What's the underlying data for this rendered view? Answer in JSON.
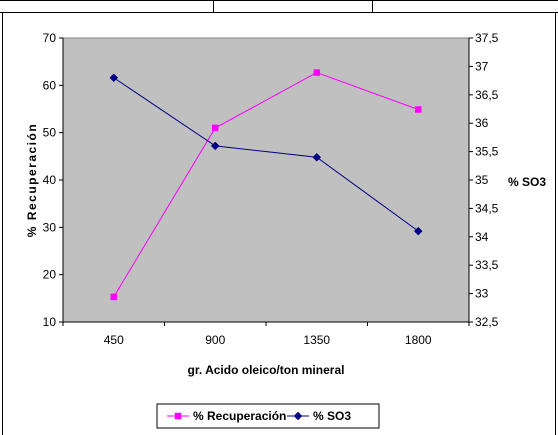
{
  "chart_data": {
    "type": "line",
    "categories": [
      "450",
      "900",
      "1350",
      "1800"
    ],
    "xlabel": "gr. Acido oleico/ton mineral",
    "ylabel": "% Recuperación",
    "y2label": "% SO3",
    "ylim": [
      10,
      70
    ],
    "y2lim": [
      32.5,
      37.5
    ],
    "yticks": [
      "10",
      "20",
      "30",
      "40",
      "50",
      "60",
      "70"
    ],
    "y2ticks": [
      "32,5",
      "33",
      "33,5",
      "34",
      "34,5",
      "35",
      "35,5",
      "36",
      "36,5",
      "37",
      "37,5"
    ],
    "grid": false,
    "plot_background": "#c0c0c0",
    "legend_position": "bottom",
    "series": [
      {
        "name": "% Recuperación",
        "axis": "left",
        "color": "#ff00ff",
        "marker": "square",
        "values": [
          15.3,
          51.0,
          62.7,
          54.9
        ]
      },
      {
        "name": "% SO3",
        "axis": "right",
        "color": "#000080",
        "marker": "diamond",
        "values": [
          36.8,
          35.6,
          35.4,
          34.1
        ]
      }
    ]
  }
}
